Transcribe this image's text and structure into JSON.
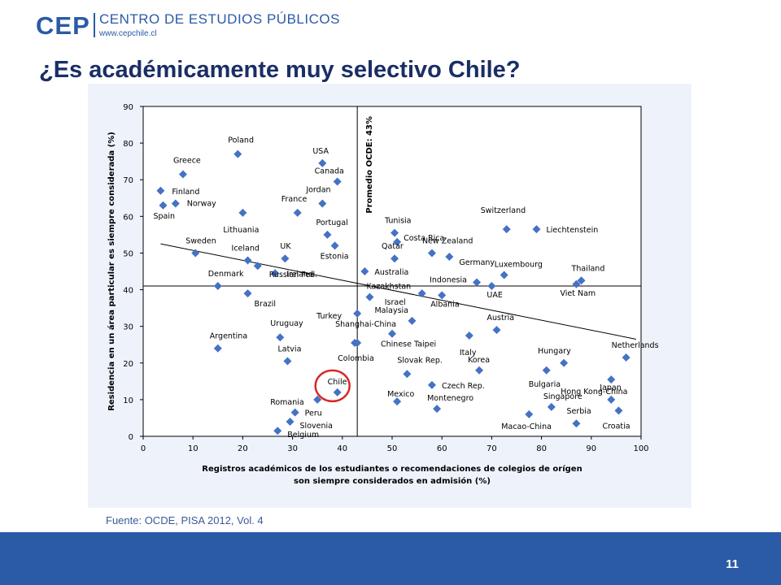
{
  "header": {
    "logo": "CEP",
    "org_name": "CENTRO DE ESTUDIOS PÚBLICOS",
    "url": "www.cepchile.cl"
  },
  "title": "¿Es académicamente muy selectivo Chile?",
  "source": "Fuente: OCDE, PISA 2012, Vol. 4",
  "page_number": "11",
  "colors": {
    "brand": "#2b5aa6",
    "title": "#1a2e66",
    "marker": "#4472c4",
    "highlight": "#d62828"
  },
  "chart_data": {
    "type": "scatter",
    "xlabel": [
      "Registros académicos  de los estudiantes o recomendaciones de colegios de orígen",
      "son siempre considerados  en admisión (%)"
    ],
    "ylabel": "Residencia  en un área particular es siempre considerada (%)",
    "xlim": [
      0,
      100
    ],
    "ylim": [
      0,
      90
    ],
    "xticks": [
      0,
      10,
      20,
      30,
      40,
      50,
      60,
      70,
      80,
      90,
      100
    ],
    "yticks": [
      0,
      10,
      20,
      30,
      40,
      50,
      60,
      70,
      80,
      90
    ],
    "grid": false,
    "reference_lines": {
      "vertical": {
        "x": 43,
        "label": "Promedio OCDE: 43%"
      },
      "horizontal": {
        "y": 41
      }
    },
    "trend_line": {
      "from": [
        3.5,
        52.5
      ],
      "to": [
        99,
        26.5
      ]
    },
    "highlight": "Chile",
    "points": [
      {
        "label": "Greece",
        "x": 8,
        "y": 71.5
      },
      {
        "label": "Finland",
        "x": 3.5,
        "y": 67
      },
      {
        "label": "Norway",
        "x": 6.5,
        "y": 63.5
      },
      {
        "label": "Spain",
        "x": 4,
        "y": 63
      },
      {
        "label": "Poland",
        "x": 19,
        "y": 77
      },
      {
        "label": "Lithuania",
        "x": 20,
        "y": 61
      },
      {
        "label": "USA",
        "x": 36,
        "y": 74.5
      },
      {
        "label": "Canada",
        "x": 39,
        "y": 69.5
      },
      {
        "label": "Jordan",
        "x": 36,
        "y": 63.5
      },
      {
        "label": "France",
        "x": 31,
        "y": 61
      },
      {
        "label": "Portugal",
        "x": 37,
        "y": 55
      },
      {
        "label": "Estonia",
        "x": 38.5,
        "y": 52
      },
      {
        "label": "Sweden",
        "x": 10.5,
        "y": 50
      },
      {
        "label": "Iceland",
        "x": 21,
        "y": 48
      },
      {
        "label": "UK",
        "x": 28.5,
        "y": 48.5
      },
      {
        "label": "Russian Fed.",
        "x": 23,
        "y": 46.5
      },
      {
        "label": "Ireland",
        "x": 26.5,
        "y": 44.5
      },
      {
        "label": "Denmark",
        "x": 15,
        "y": 41
      },
      {
        "label": "Brazil",
        "x": 21,
        "y": 39
      },
      {
        "label": "Argentina",
        "x": 15,
        "y": 24
      },
      {
        "label": "Uruguay",
        "x": 27.5,
        "y": 27
      },
      {
        "label": "Latvia",
        "x": 29,
        "y": 20.5
      },
      {
        "label": "Turkey",
        "x": 43,
        "y": 33.5
      },
      {
        "label": "Shanghai-China",
        "x": 42.5,
        "y": 25.5
      },
      {
        "label": "Colombia",
        "x": 43,
        "y": 25.5
      },
      {
        "label": "Chile",
        "x": 39,
        "y": 12
      },
      {
        "label": "Romania",
        "x": 35,
        "y": 10
      },
      {
        "label": "Peru",
        "x": 30.5,
        "y": 6.5
      },
      {
        "label": "Slovenia",
        "x": 29.5,
        "y": 4
      },
      {
        "label": "Belgium",
        "x": 27,
        "y": 1.5
      },
      {
        "label": "Australia",
        "x": 44.5,
        "y": 45
      },
      {
        "label": "Kazakhstan",
        "x": 45.5,
        "y": 38
      },
      {
        "label": "Tunisia",
        "x": 50.5,
        "y": 55.5
      },
      {
        "label": "Costa Rica",
        "x": 51,
        "y": 53
      },
      {
        "label": "Qatar",
        "x": 50.5,
        "y": 48.5
      },
      {
        "label": "New Zealand",
        "x": 58,
        "y": 50
      },
      {
        "label": "Germany",
        "x": 61.5,
        "y": 49
      },
      {
        "label": "Israel",
        "x": 56,
        "y": 39
      },
      {
        "label": "Albania",
        "x": 60,
        "y": 38.5
      },
      {
        "label": "Indonesia",
        "x": 67,
        "y": 42
      },
      {
        "label": "UAE",
        "x": 70,
        "y": 41
      },
      {
        "label": "Luxembourg",
        "x": 72.5,
        "y": 44
      },
      {
        "label": "Switzerland",
        "x": 73,
        "y": 56.5
      },
      {
        "label": "Liechtenstein",
        "x": 79,
        "y": 56.5
      },
      {
        "label": "Thailand",
        "x": 88,
        "y": 42.5
      },
      {
        "label": "Viet Nam",
        "x": 87,
        "y": 41.5
      },
      {
        "label": "Malaysia",
        "x": 54,
        "y": 31.5
      },
      {
        "label": "Chinese Taipei",
        "x": 50,
        "y": 28
      },
      {
        "label": "Austria",
        "x": 71,
        "y": 29
      },
      {
        "label": "Italy",
        "x": 65.5,
        "y": 27.5
      },
      {
        "label": "Korea",
        "x": 67.5,
        "y": 18
      },
      {
        "label": "Slovak Rep.",
        "x": 53,
        "y": 17
      },
      {
        "label": "Czech Rep.",
        "x": 58,
        "y": 14
      },
      {
        "label": "Mexico",
        "x": 51,
        "y": 9.5
      },
      {
        "label": "Montenegro",
        "x": 59,
        "y": 7.5
      },
      {
        "label": "Hungary",
        "x": 84.5,
        "y": 20
      },
      {
        "label": "Bulgaria",
        "x": 81,
        "y": 18
      },
      {
        "label": "Hong Kong-China",
        "x": 94,
        "y": 15.5
      },
      {
        "label": "Netherlands",
        "x": 97,
        "y": 21.5
      },
      {
        "label": "Singapore",
        "x": 82,
        "y": 8
      },
      {
        "label": "Japan",
        "x": 94,
        "y": 10
      },
      {
        "label": "Macao-China",
        "x": 77.5,
        "y": 6
      },
      {
        "label": "Serbia",
        "x": 87,
        "y": 3.5
      },
      {
        "label": "Croatia",
        "x": 95.5,
        "y": 7
      }
    ]
  }
}
